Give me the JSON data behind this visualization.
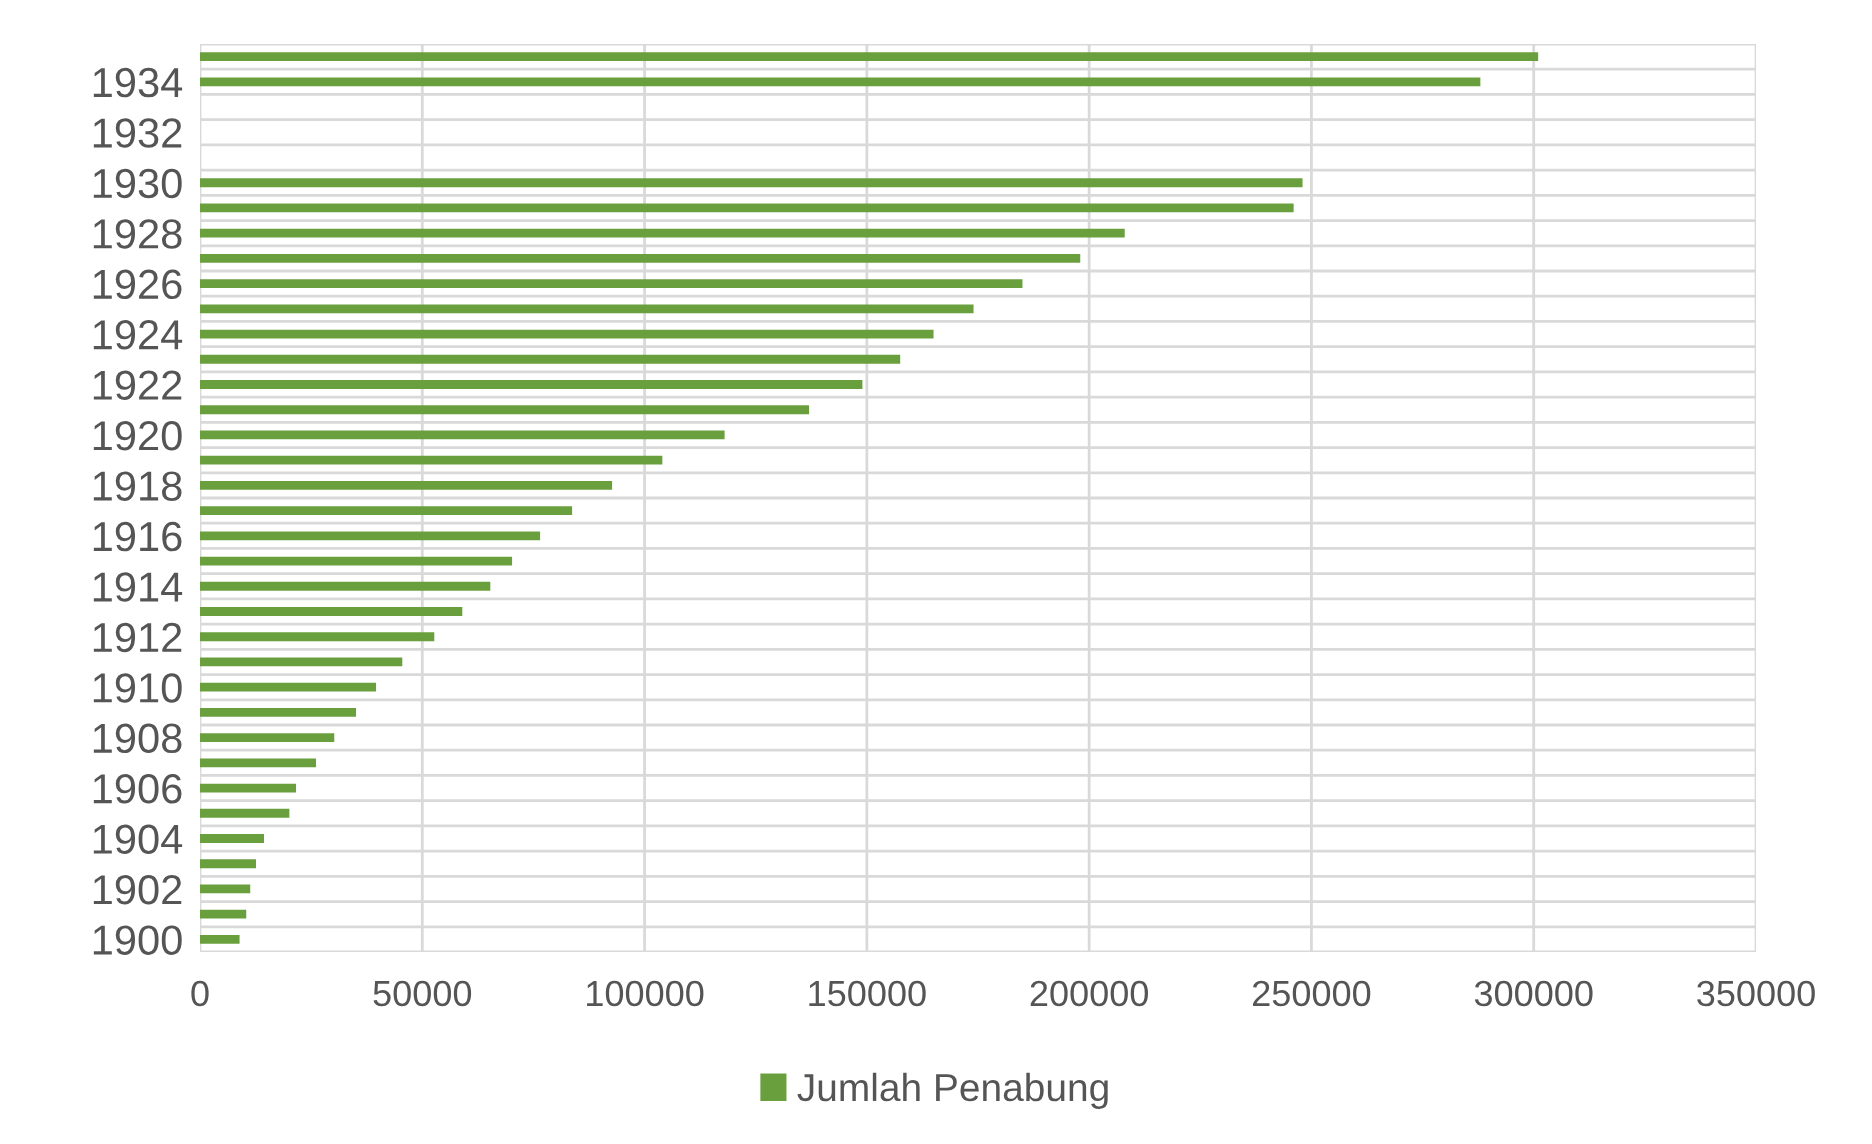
{
  "chart_data": {
    "type": "bar",
    "orientation": "horizontal",
    "categories": [
      null,
      "1934",
      null,
      "1932",
      null,
      "1930",
      null,
      "1928",
      null,
      "1926",
      null,
      "1924",
      null,
      "1922",
      null,
      "1920",
      null,
      "1918",
      null,
      "1916",
      null,
      "1914",
      null,
      "1912",
      null,
      "1910",
      null,
      "1908",
      null,
      "1906",
      null,
      "1904",
      null,
      "1902",
      null,
      "1900"
    ],
    "series": [
      {
        "name": "Jumlah Penabung",
        "color": "#6a9f3e",
        "values": [
          301000,
          288000,
          null,
          null,
          null,
          248000,
          246000,
          208000,
          198000,
          185000,
          174000,
          165000,
          157500,
          149000,
          137000,
          118000,
          104000,
          92700,
          83700,
          76500,
          70200,
          65300,
          59000,
          52700,
          45500,
          39600,
          35100,
          30200,
          26100,
          21600,
          20100,
          14400,
          12600,
          11300,
          10400,
          8900
        ]
      }
    ],
    "xlim": [
      0,
      350000
    ],
    "xticks": [
      0,
      50000,
      100000,
      150000,
      200000,
      250000,
      300000,
      350000
    ],
    "grid": true,
    "legend": "bottom"
  }
}
